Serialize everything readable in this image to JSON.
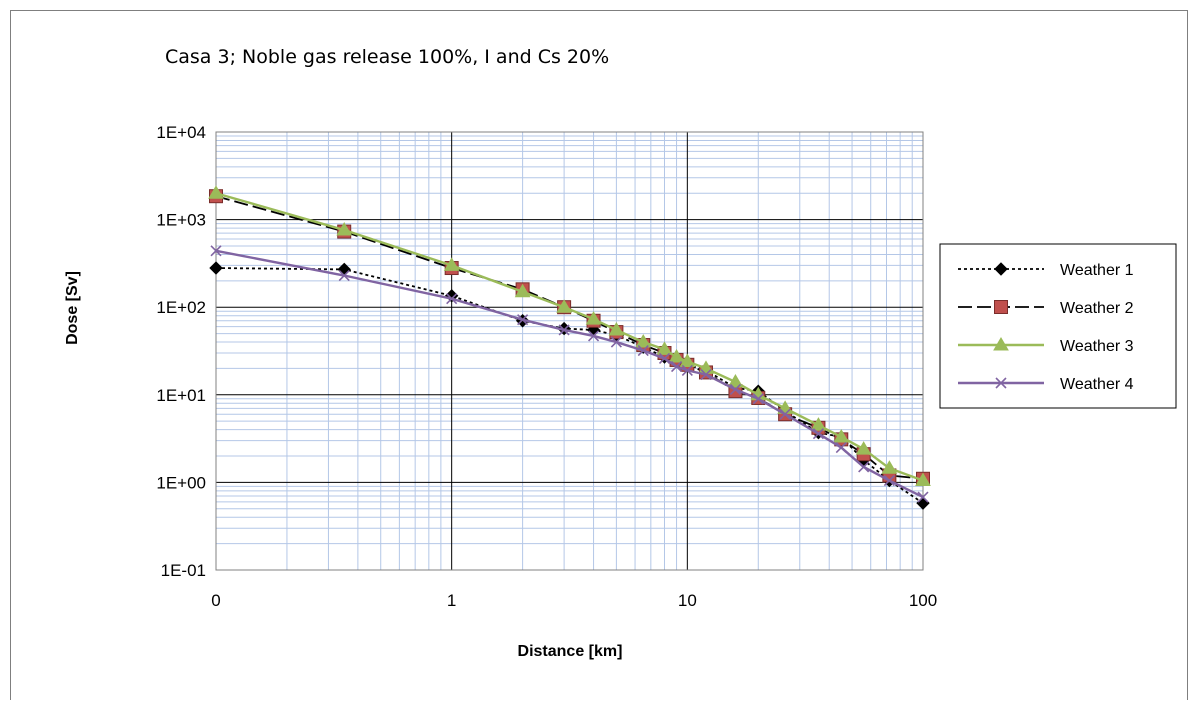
{
  "chart_data": {
    "type": "line",
    "title": "Casa 3; Noble gas release 100%, I and Cs 20%",
    "xlabel": "Distance [km]",
    "ylabel": "Dose [Sv]",
    "x_scale": "log",
    "y_scale": "log",
    "xlim": [
      0.1,
      100
    ],
    "ylim": [
      0.1,
      10000
    ],
    "x_ticks": [
      {
        "value": 0.1,
        "label": "0"
      },
      {
        "value": 1,
        "label": "1"
      },
      {
        "value": 10,
        "label": "10"
      },
      {
        "value": 100,
        "label": "100"
      }
    ],
    "y_ticks": [
      {
        "value": 0.1,
        "label": "1E-01"
      },
      {
        "value": 1,
        "label": "1E+00"
      },
      {
        "value": 10,
        "label": "1E+01"
      },
      {
        "value": 100,
        "label": "1E+02"
      },
      {
        "value": 1000,
        "label": "1E+03"
      },
      {
        "value": 10000,
        "label": "1E+04"
      }
    ],
    "grid": true,
    "legend_position": "right",
    "series": [
      {
        "name": "Weather 1",
        "color": "#000000",
        "line_style": "dotted",
        "marker": "diamond",
        "x": [
          0.1,
          0.35,
          1,
          2,
          3,
          4,
          5,
          6.5,
          8,
          9,
          10,
          12,
          16,
          20,
          26,
          36,
          45,
          56,
          72,
          100
        ],
        "y": [
          280,
          270,
          135,
          70,
          57,
          55,
          48,
          35,
          27,
          24,
          22,
          19,
          12,
          11,
          6.5,
          3.7,
          3.3,
          1.8,
          1.05,
          0.58
        ]
      },
      {
        "name": "Weather 2",
        "color": "#000000",
        "marker_color": "#c0504d",
        "line_style": "dashed",
        "marker": "square",
        "x": [
          0.1,
          0.35,
          1,
          2,
          3,
          4,
          5,
          6.5,
          8,
          9,
          10,
          12,
          16,
          20,
          26,
          36,
          45,
          56,
          72,
          100
        ],
        "y": [
          1850,
          730,
          280,
          160,
          100,
          70,
          52,
          37,
          30,
          25,
          22,
          18,
          11,
          9.2,
          6,
          4.2,
          3.1,
          2.1,
          1.2,
          1.1
        ]
      },
      {
        "name": "Weather 3",
        "color": "#9bbb59",
        "line_style": "solid",
        "marker": "triangle",
        "x": [
          0.1,
          0.35,
          1,
          2,
          3,
          4,
          5,
          6.5,
          8,
          9,
          10,
          12,
          16,
          20,
          26,
          36,
          45,
          56,
          72,
          100
        ],
        "y": [
          2000,
          760,
          300,
          150,
          100,
          73,
          55,
          40,
          33,
          27,
          24,
          20,
          14,
          10,
          7,
          4.5,
          3.3,
          2.4,
          1.45,
          1.05
        ]
      },
      {
        "name": "Weather 4",
        "color": "#8064a2",
        "line_style": "solid",
        "marker": "x",
        "x": [
          0.1,
          0.35,
          1,
          2,
          3,
          4,
          5,
          6.5,
          8,
          9,
          10,
          12,
          16,
          20,
          26,
          36,
          45,
          56,
          72,
          100
        ],
        "y": [
          440,
          230,
          125,
          72,
          55,
          47,
          40,
          32,
          26,
          21,
          19,
          17,
          11.5,
          9,
          6,
          3.6,
          2.5,
          1.5,
          1.05,
          0.68
        ]
      }
    ]
  }
}
